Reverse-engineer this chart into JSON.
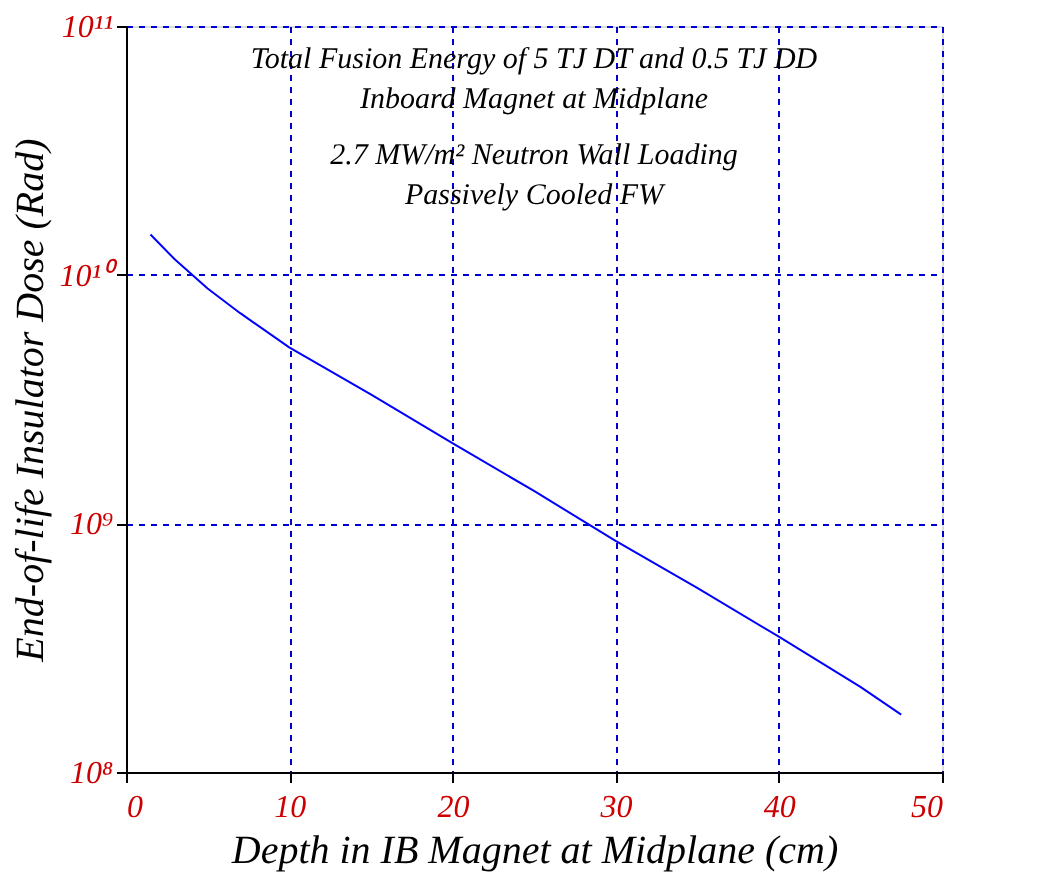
{
  "chart_data": {
    "type": "line",
    "xlabel": "Depth in IB Magnet at Midplane (cm)",
    "ylabel": "End-of-life Insulator Dose (Rad)",
    "annotations": [
      "Total Fusion Energy of 5 TJ DT and 0.5 TJ DD",
      "Inboard Magnet at Midplane",
      "2.7 MW/m² Neutron Wall Loading",
      "Passively Cooled FW"
    ],
    "series": [
      {
        "color": "#0000ff",
        "x": [
          1.5,
          3,
          5,
          7,
          10,
          15,
          20,
          25,
          30,
          35,
          40,
          45,
          47.5
        ],
        "values": [
          14500000000.0,
          11500000000.0,
          8800000000.0,
          7000000000.0,
          5100000000.0,
          3300000000.0,
          2100000000.0,
          1350000000.0,
          850000000.0,
          550000000.0,
          350000000.0,
          220000000.0,
          170000000.0
        ]
      }
    ],
    "xlim": [
      0,
      50
    ],
    "xticks": [
      0,
      10,
      20,
      30,
      40,
      50
    ],
    "ylim": [
      100000000.0,
      100000000000.0
    ],
    "yticks": [
      {
        "value": 100000000.0,
        "label": "10⁸"
      },
      {
        "value": 1000000000.0,
        "label": "10⁹"
      },
      {
        "value": 10000000000.0,
        "label": "10¹⁰"
      },
      {
        "value": 100000000000.0,
        "label": "10¹¹"
      }
    ],
    "log": true,
    "grid": true,
    "line_style": "solid",
    "marker": "none"
  }
}
